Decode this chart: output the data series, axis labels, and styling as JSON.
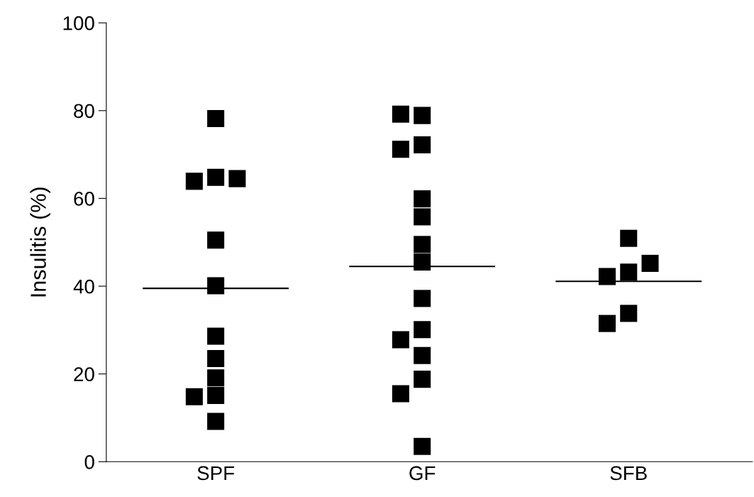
{
  "chart_data": {
    "type": "scatter",
    "ylabel": "Insulitis (%)",
    "categories": [
      "SPF",
      "GF",
      "SFB"
    ],
    "ylim": [
      0,
      100
    ],
    "yticks": [
      0,
      20,
      40,
      60,
      80,
      100
    ],
    "grid": false,
    "legend": false,
    "series": [
      {
        "marker": "square",
        "color": "#000000",
        "x": [
          "SPF",
          "SPF",
          "SPF",
          "SPF",
          "SPF",
          "SPF",
          "SPF",
          "SPF",
          "SPF",
          "SPF",
          "SPF",
          "SPF",
          "GF",
          "GF",
          "GF",
          "GF",
          "GF",
          "GF",
          "GF",
          "GF",
          "GF",
          "GF",
          "GF",
          "GF",
          "GF",
          "GF",
          "GF",
          "SFB",
          "SFB",
          "SFB",
          "SFB",
          "SFB",
          "SFB"
        ],
        "values": [
          78.2,
          64.8,
          63.9,
          64.5,
          50.5,
          40.1,
          28.6,
          23.5,
          19.1,
          15.1,
          14.8,
          9.2,
          78.9,
          79.2,
          72.2,
          71.2,
          59.9,
          55.8,
          49.5,
          45.5,
          37.2,
          30.1,
          27.8,
          24.2,
          18.8,
          15.5,
          3.5,
          50.9,
          43.2,
          42.2,
          45.2,
          33.8,
          31.5
        ]
      }
    ],
    "ref_lines": [
      {
        "axis": "y",
        "value": 39.5,
        "color": "#000000"
      },
      {
        "axis": "y",
        "value": 44.5,
        "color": "#000000"
      },
      {
        "axis": "y",
        "value": 41.1,
        "color": "#000000"
      }
    ]
  }
}
